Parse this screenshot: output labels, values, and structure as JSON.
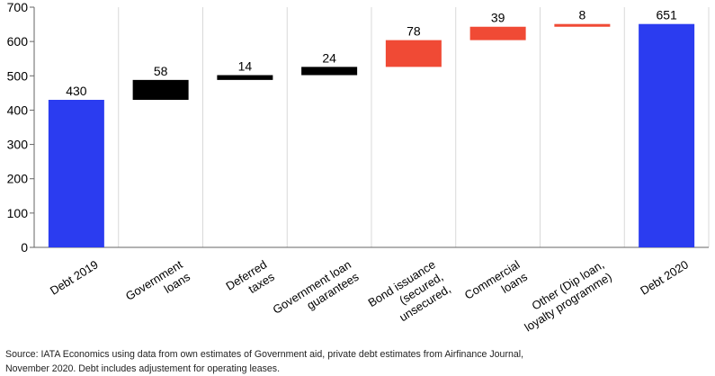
{
  "chart_data": {
    "type": "waterfall",
    "ylim": [
      0,
      700
    ],
    "yticks": [
      0,
      100,
      200,
      300,
      400,
      500,
      600,
      700
    ],
    "grid": true,
    "categories": [
      [
        "Debt 2019"
      ],
      [
        "Government",
        "loans"
      ],
      [
        "Deferred",
        "taxes"
      ],
      [
        "Government loan",
        "guarantees"
      ],
      [
        "Bond issuance",
        "(secured,",
        "unsecured,"
      ],
      [
        "Commercial",
        "loans"
      ],
      [
        "Other (Dip loan,",
        "loyalty programme)"
      ],
      [
        "Debt 2020"
      ]
    ],
    "bars": [
      {
        "start": 0,
        "end": 430,
        "label": "430",
        "kind": "total"
      },
      {
        "start": 430,
        "end": 488,
        "label": "58",
        "kind": "government"
      },
      {
        "start": 488,
        "end": 502,
        "label": "14",
        "kind": "government"
      },
      {
        "start": 502,
        "end": 526,
        "label": "24",
        "kind": "government"
      },
      {
        "start": 526,
        "end": 604,
        "label": "78",
        "kind": "private"
      },
      {
        "start": 604,
        "end": 643,
        "label": "39",
        "kind": "private"
      },
      {
        "start": 643,
        "end": 651,
        "label": "8",
        "kind": "private"
      },
      {
        "start": 0,
        "end": 651,
        "label": "651",
        "kind": "total"
      }
    ],
    "colors": {
      "total": "#2b3cf0",
      "government": "#000000",
      "private": "#f04a35",
      "grid": "#d9d9d9",
      "axis": "#666666"
    }
  },
  "source_lines": [
    "Source: IATA Economics using data from own estimates of Government aid, private debt estimates from Airfinance Journal,",
    "November 2020. Debt includes adjustement for operating leases."
  ]
}
